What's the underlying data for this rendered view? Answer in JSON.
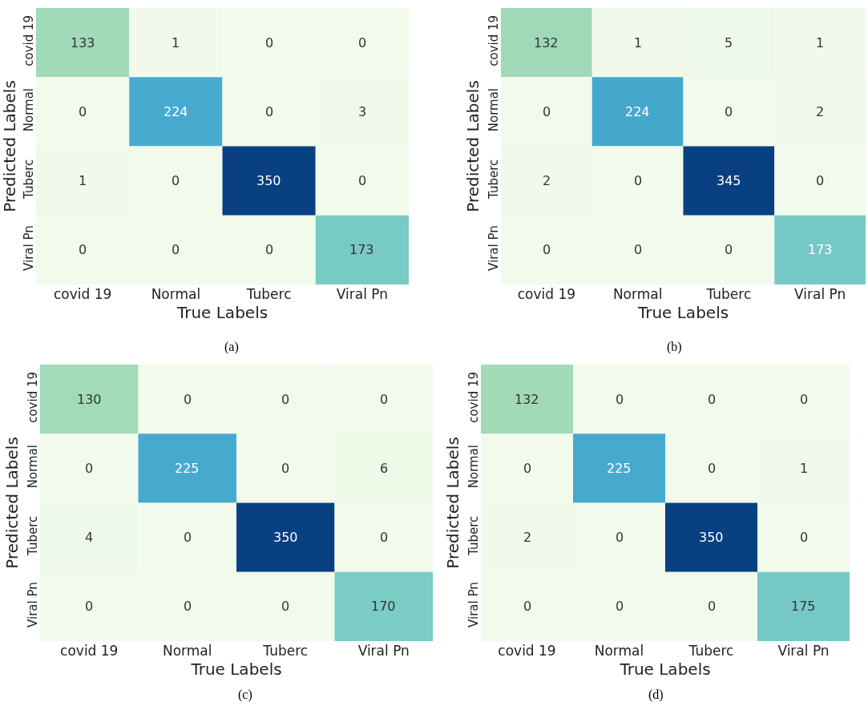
{
  "chart_data": [
    {
      "type": "heatmap",
      "xlabel": "True Labels",
      "ylabel": "Predicted Labels",
      "categories": [
        "covid 19",
        "Normal",
        "Tuberc",
        "Viral Pn"
      ],
      "y_categories": [
        "covid 19",
        "Normal",
        "Tuberc",
        "Viral Pn"
      ],
      "cells": [
        [
          133,
          1,
          0,
          0
        ],
        [
          0,
          224,
          0,
          3
        ],
        [
          1,
          0,
          350,
          0
        ],
        [
          0,
          0,
          0,
          173
        ]
      ],
      "data_labels": true,
      "annotations": [
        "(a)"
      ]
    },
    {
      "type": "heatmap",
      "xlabel": "True Labels",
      "ylabel": "Predicted Labels",
      "categories": [
        "covid 19",
        "Normal",
        "Tuberc",
        "Viral Pn"
      ],
      "y_categories": [
        "covid 19",
        "Normal",
        "Tuberc",
        "Viral Pn"
      ],
      "cells": [
        [
          132,
          1,
          5,
          1
        ],
        [
          0,
          224,
          0,
          2
        ],
        [
          2,
          0,
          345,
          0
        ],
        [
          0,
          0,
          0,
          173
        ]
      ],
      "data_labels": true,
      "annotations": [
        "(b)"
      ]
    },
    {
      "type": "heatmap",
      "xlabel": "True Labels",
      "ylabel": "Predicted Labels",
      "categories": [
        "covid 19",
        "Normal",
        "Tuberc",
        "Viral Pn"
      ],
      "y_categories": [
        "covid 19",
        "Normal",
        "Tuberc",
        "Viral Pn"
      ],
      "cells": [
        [
          130,
          0,
          0,
          0
        ],
        [
          0,
          225,
          0,
          6
        ],
        [
          4,
          0,
          350,
          0
        ],
        [
          0,
          0,
          0,
          170
        ]
      ],
      "data_labels": true,
      "annotations": [
        "(c)"
      ]
    },
    {
      "type": "heatmap",
      "xlabel": "True Labels",
      "ylabel": "Predicted Labels",
      "categories": [
        "covid 19",
        "Normal",
        "Tuberc",
        "Viral Pn"
      ],
      "y_categories": [
        "covid 19",
        "Normal",
        "Tuberc",
        "Viral Pn"
      ],
      "cells": [
        [
          132,
          0,
          0,
          0
        ],
        [
          0,
          225,
          0,
          1
        ],
        [
          2,
          0,
          350,
          0
        ],
        [
          0,
          0,
          0,
          175
        ]
      ],
      "data_labels": true,
      "annotations": [
        "(d)"
      ]
    }
  ]
}
